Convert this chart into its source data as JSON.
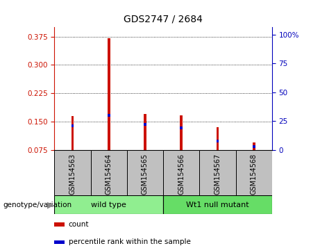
{
  "title": "GDS2747 / 2684",
  "samples": [
    "GSM154563",
    "GSM154564",
    "GSM154565",
    "GSM154566",
    "GSM154567",
    "GSM154568"
  ],
  "red_bar_heights": [
    0.165,
    0.37,
    0.17,
    0.167,
    0.135,
    0.095
  ],
  "blue_bar_positions": [
    0.136,
    0.163,
    0.14,
    0.13,
    0.095,
    0.08
  ],
  "blue_bar_height": 0.007,
  "red_base": 0.075,
  "ylim_left": [
    0.075,
    0.4
  ],
  "yticks_left": [
    0.075,
    0.15,
    0.225,
    0.3,
    0.375
  ],
  "ylim_right": [
    0,
    106.67
  ],
  "yticks_right": [
    0,
    25,
    50,
    75,
    100
  ],
  "ytick_labels_right": [
    "0",
    "25",
    "50",
    "75",
    "100%"
  ],
  "groups": [
    {
      "label": "wild type",
      "indices": [
        0,
        1,
        2
      ],
      "color": "#90EE90"
    },
    {
      "label": "Wt1 null mutant",
      "indices": [
        3,
        4,
        5
      ],
      "color": "#66DD66"
    }
  ],
  "group_label": "genotype/variation",
  "legend_items": [
    {
      "color": "#CC1100",
      "label": "count"
    },
    {
      "color": "#0000CC",
      "label": "percentile rank within the sample"
    }
  ],
  "bar_color_red": "#CC1100",
  "bar_color_blue": "#0000CC",
  "tick_color_left": "#CC1100",
  "tick_color_right": "#0000BB",
  "grid_color": "#000000",
  "bg_plot": "#FFFFFF",
  "bg_label": "#C0C0C0",
  "bar_width": 0.07
}
